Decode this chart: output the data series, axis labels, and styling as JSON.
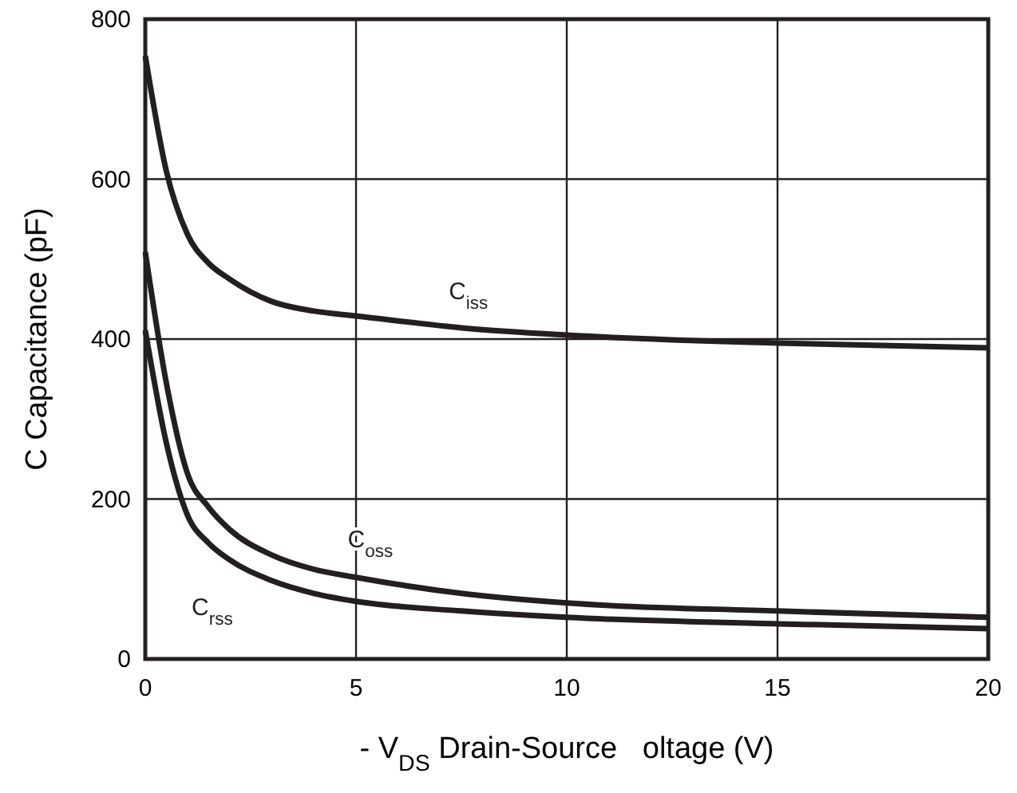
{
  "chart_data": {
    "type": "line",
    "xlabel": "- V$_{DS}$ Drain-Source   oltage (V)",
    "ylabel": "C Capacitance (pF)",
    "xlim": [
      0,
      20
    ],
    "ylim": [
      0,
      800
    ],
    "xticks": [
      0,
      5,
      10,
      15,
      20
    ],
    "yticks": [
      0,
      200,
      400,
      600,
      800
    ],
    "grid": true,
    "legend": false,
    "marker": "none",
    "line_style": "solid",
    "series": [
      {
        "name": "C$_{iss}$",
        "color": "#231f20",
        "x": [
          0,
          0.5,
          1,
          1.5,
          2,
          3,
          4,
          5,
          7.5,
          10,
          15,
          20
        ],
        "values": [
          754,
          610,
          531,
          495,
          475,
          447,
          435,
          429,
          414,
          405,
          395,
          389
        ]
      },
      {
        "name": "C$_{oss}$",
        "color": "#231f20",
        "x": [
          0,
          0.5,
          1,
          1.5,
          2,
          3,
          4,
          5,
          7.5,
          10,
          15,
          20
        ],
        "values": [
          509,
          345,
          232,
          190,
          162,
          130,
          112,
          102,
          82,
          70,
          60,
          52
        ]
      },
      {
        "name": "C$_{rss}$",
        "color": "#231f20",
        "x": [
          0,
          0.5,
          1,
          1.5,
          2,
          3,
          4,
          5,
          7.5,
          10,
          15,
          20
        ],
        "values": [
          411,
          270,
          180,
          145,
          124,
          98,
          82,
          72,
          60,
          52,
          44,
          38
        ]
      }
    ]
  }
}
